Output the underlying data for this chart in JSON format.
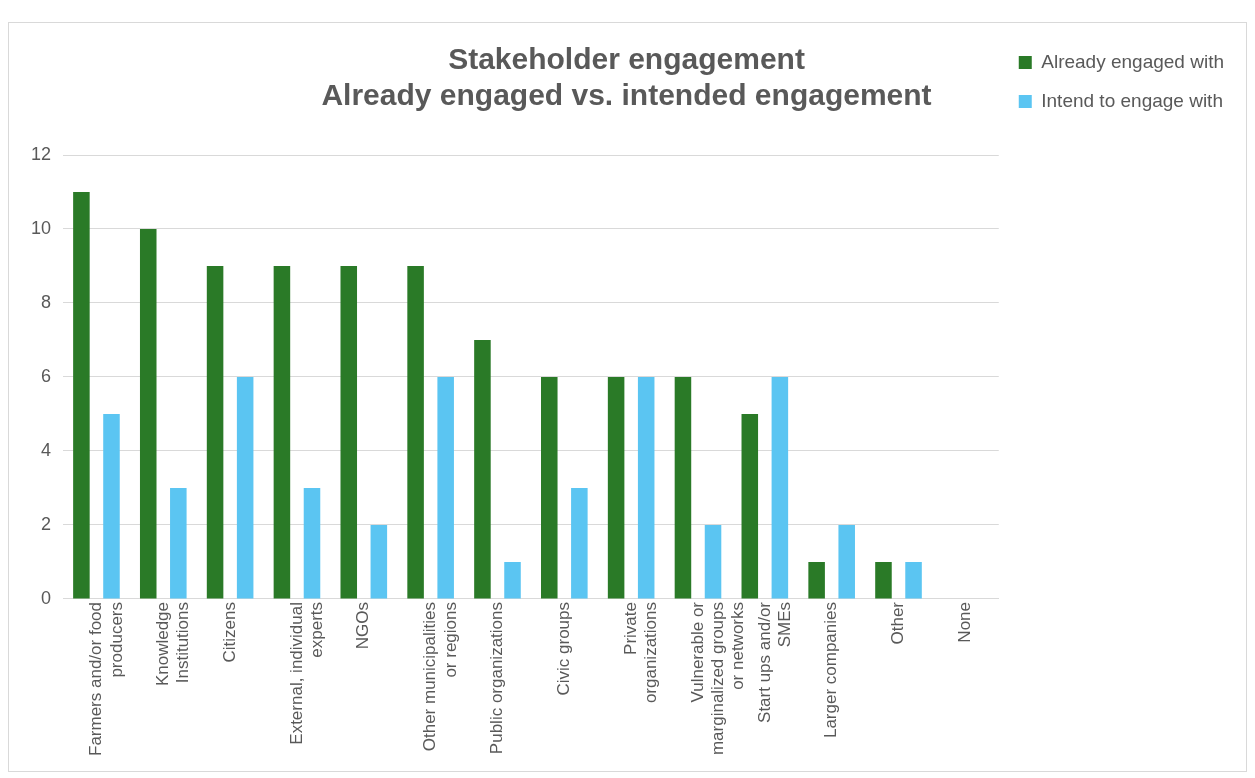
{
  "chart_data": {
    "type": "bar",
    "title": [
      "Stakeholder engagement",
      "Already engaged vs. intended engagement"
    ],
    "categories": [
      "Farmers and/or food producers",
      "Knowledge Institutions",
      "Citizens",
      "External, individual experts",
      "NGOs",
      "Other municipalities or regions",
      "Public organizations",
      "Civic groups",
      "Private organizations",
      "Vulnerable or marginalized groups or networks",
      "Start ups and/or SMEs",
      "Larger companies",
      "Other",
      "None"
    ],
    "series": [
      {
        "name": "Already engaged with",
        "color": "#2a7a27",
        "values": [
          11,
          10,
          9,
          9,
          9,
          9,
          7,
          6,
          6,
          6,
          5,
          1,
          1,
          0
        ]
      },
      {
        "name": "Intend to engage with",
        "color": "#5bc5f2",
        "values": [
          5,
          3,
          6,
          3,
          2,
          6,
          1,
          3,
          6,
          2,
          6,
          2,
          1,
          0
        ]
      }
    ],
    "ylim": [
      0,
      12
    ],
    "yticks": [
      0,
      2,
      4,
      6,
      8,
      10,
      12
    ],
    "grid": "y",
    "legend": "top right"
  }
}
